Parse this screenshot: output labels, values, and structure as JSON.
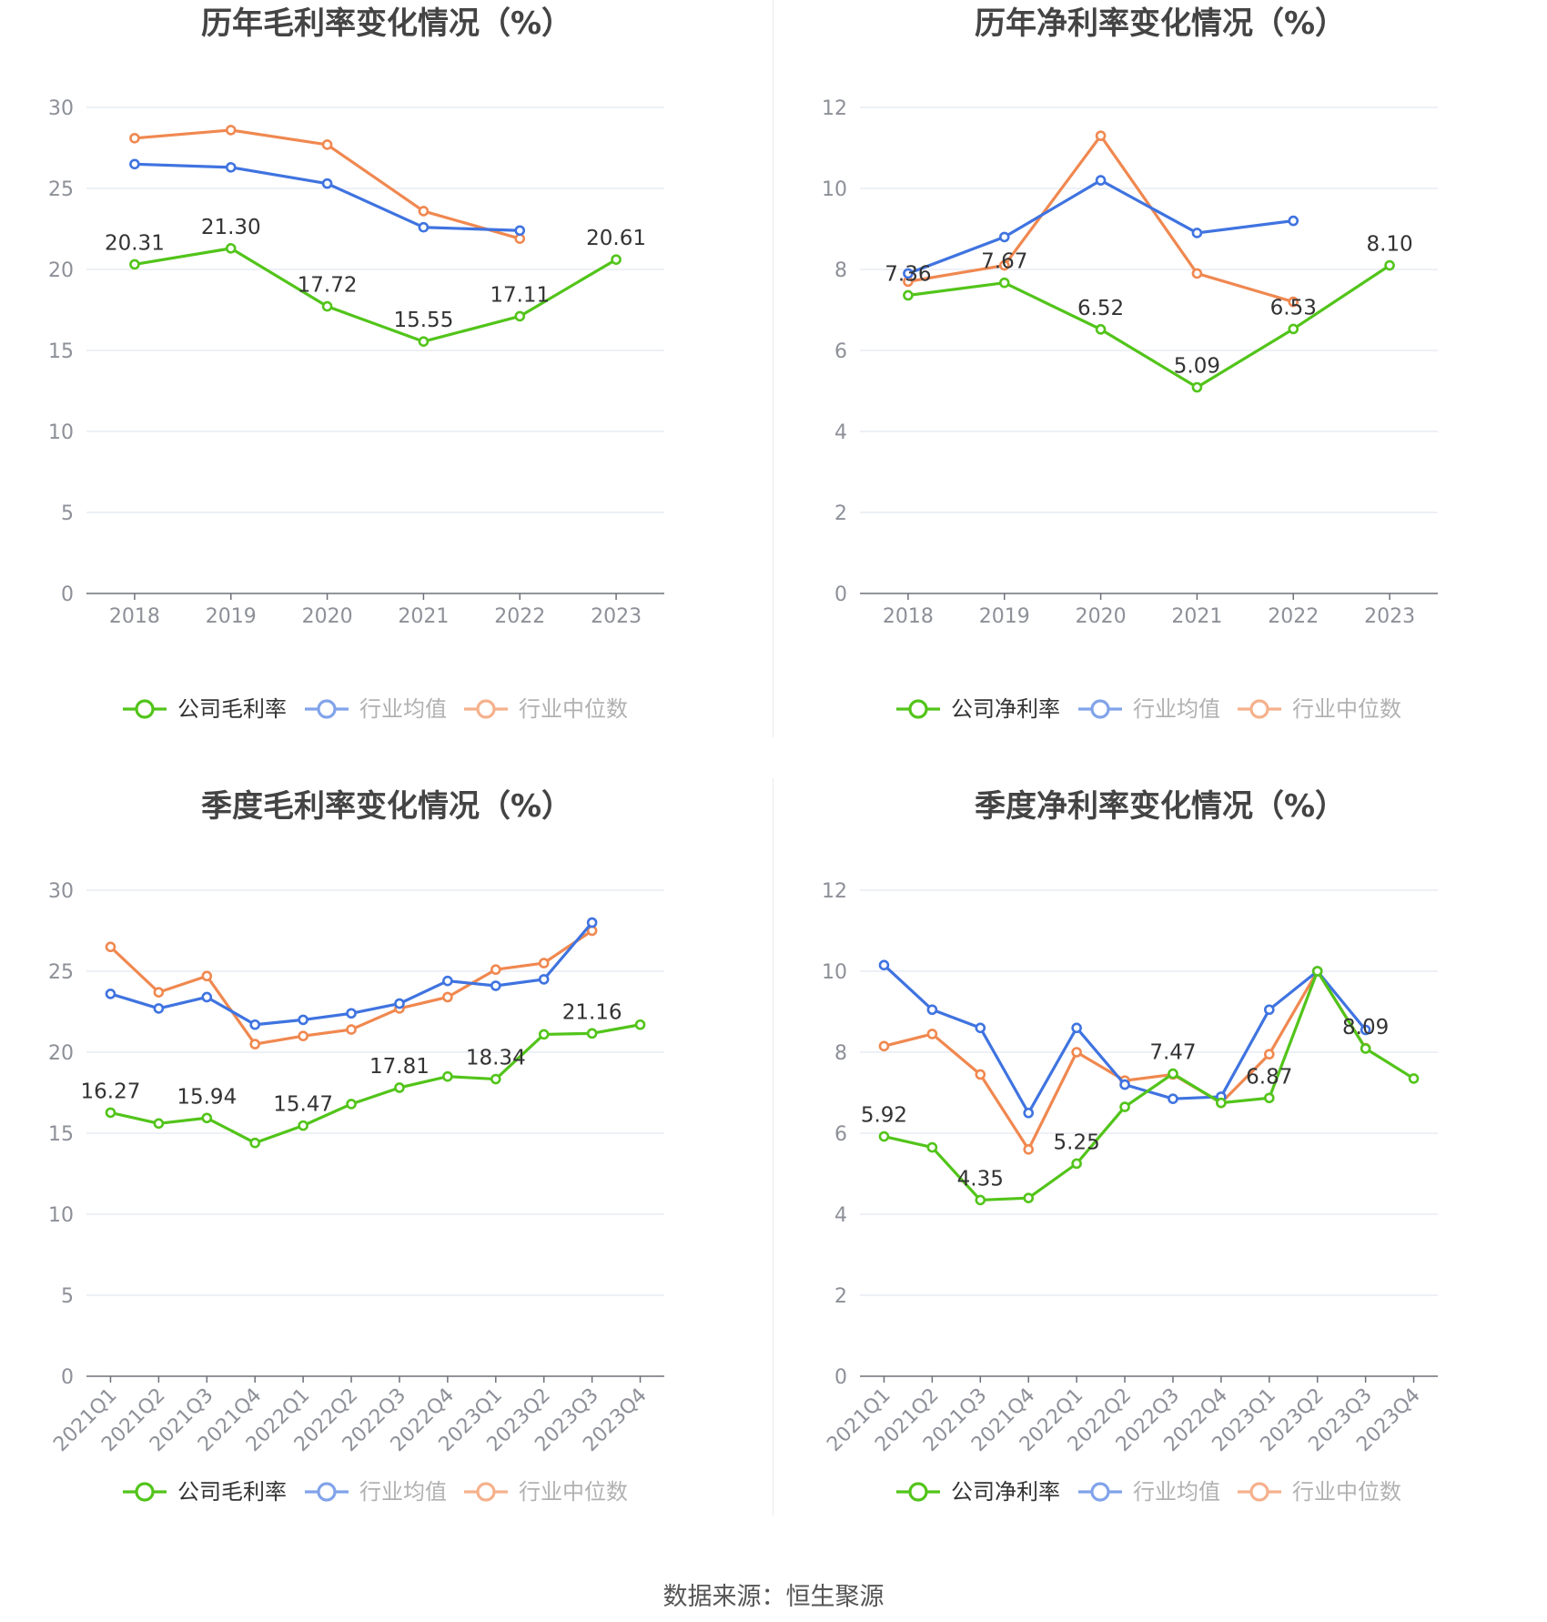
{
  "source": "数据来源：恒生聚源",
  "colors": {
    "company": "#52c41a",
    "avg": "#3f73e0",
    "median": "#f08850",
    "grid": "#e3e6f2",
    "axis": "#6e7079",
    "tick": "#8d9098",
    "label": "#333333"
  },
  "chart_data": [
    {
      "type": "line",
      "title": "历年毛利率变化情况（%）",
      "categories": [
        "2018",
        "2019",
        "2020",
        "2021",
        "2022",
        "2023"
      ],
      "ylim": [
        0,
        30
      ],
      "yticks": [
        "0",
        "5",
        "10",
        "15",
        "20",
        "25",
        "30"
      ],
      "grid": true,
      "legend_position": "bottom",
      "series": [
        {
          "name": "公司毛利率",
          "color": "#52c41a",
          "values": [
            20.31,
            21.3,
            17.72,
            15.55,
            17.11,
            20.61
          ],
          "labels": [
            "20.31",
            "21.30",
            "17.72",
            "15.55",
            "17.11",
            "20.61"
          ]
        },
        {
          "name": "行业均值",
          "color": "#3f73e0",
          "values": [
            26.5,
            26.3,
            25.3,
            22.6,
            22.4,
            null
          ]
        },
        {
          "name": "行业中位数",
          "color": "#f08850",
          "values": [
            28.1,
            28.6,
            27.7,
            23.6,
            21.9,
            null
          ]
        }
      ]
    },
    {
      "type": "line",
      "title": "历年净利率变化情况（%）",
      "categories": [
        "2018",
        "2019",
        "2020",
        "2021",
        "2022",
        "2023"
      ],
      "ylim": [
        0,
        12
      ],
      "yticks": [
        "0",
        "2",
        "4",
        "6",
        "8",
        "10",
        "12"
      ],
      "grid": true,
      "legend_position": "bottom",
      "series": [
        {
          "name": "公司净利率",
          "color": "#52c41a",
          "values": [
            7.36,
            7.67,
            6.52,
            5.09,
            6.53,
            8.1
          ],
          "labels": [
            "7.36",
            "7.67",
            "6.52",
            "5.09",
            "6.53",
            "8.10"
          ]
        },
        {
          "name": "行业均值",
          "color": "#3f73e0",
          "values": [
            7.9,
            8.8,
            10.2,
            8.9,
            9.2,
            null
          ]
        },
        {
          "name": "行业中位数",
          "color": "#f08850",
          "values": [
            7.7,
            8.1,
            11.3,
            7.9,
            7.2,
            null
          ]
        }
      ]
    },
    {
      "type": "line",
      "title": "季度毛利率变化情况（%）",
      "categories": [
        "2021Q1",
        "2021Q2",
        "2021Q3",
        "2021Q4",
        "2022Q1",
        "2022Q2",
        "2022Q3",
        "2022Q4",
        "2023Q1",
        "2023Q2",
        "2023Q3",
        "2023Q4"
      ],
      "ylim": [
        0,
        30
      ],
      "yticks": [
        "0",
        "5",
        "10",
        "15",
        "20",
        "25",
        "30"
      ],
      "grid": true,
      "legend_position": "bottom",
      "series": [
        {
          "name": "公司毛利率",
          "color": "#52c41a",
          "values": [
            16.27,
            15.6,
            15.94,
            14.4,
            15.47,
            16.8,
            17.81,
            18.5,
            18.34,
            21.1,
            21.16,
            21.7
          ],
          "labels": [
            "16.27",
            "",
            "15.94",
            "",
            "15.47",
            "",
            "17.81",
            "",
            "18.34",
            "",
            "21.16",
            ""
          ]
        },
        {
          "name": "行业均值",
          "color": "#3f73e0",
          "values": [
            23.6,
            22.7,
            23.4,
            21.7,
            22.0,
            22.4,
            23.0,
            24.4,
            24.1,
            24.5,
            28.0,
            null
          ]
        },
        {
          "name": "行业中位数",
          "color": "#f08850",
          "values": [
            26.5,
            23.7,
            24.7,
            20.5,
            21.0,
            21.4,
            22.7,
            23.4,
            25.1,
            25.5,
            27.5,
            null
          ]
        }
      ]
    },
    {
      "type": "line",
      "title": "季度净利率变化情况（%）",
      "categories": [
        "2021Q1",
        "2021Q2",
        "2021Q3",
        "2021Q4",
        "2022Q1",
        "2022Q2",
        "2022Q3",
        "2022Q4",
        "2023Q1",
        "2023Q2",
        "2023Q3",
        "2023Q4"
      ],
      "ylim": [
        0,
        12
      ],
      "yticks": [
        "0",
        "2",
        "4",
        "6",
        "8",
        "10",
        "12"
      ],
      "grid": true,
      "legend_position": "bottom",
      "series": [
        {
          "name": "公司净利率",
          "color": "#52c41a",
          "values": [
            5.92,
            5.65,
            4.35,
            4.4,
            5.25,
            6.65,
            7.47,
            6.75,
            6.87,
            10.0,
            8.09,
            7.35
          ],
          "labels": [
            "5.92",
            "",
            "4.35",
            "",
            "5.25",
            "",
            "7.47",
            "",
            "6.87",
            "",
            "8.09",
            ""
          ]
        },
        {
          "name": "行业均值",
          "color": "#3f73e0",
          "values": [
            10.15,
            9.05,
            8.6,
            6.5,
            8.6,
            7.2,
            6.85,
            6.9,
            9.05,
            10.0,
            8.55,
            null
          ]
        },
        {
          "name": "行业中位数",
          "color": "#f08850",
          "values": [
            8.15,
            8.45,
            7.45,
            5.6,
            8.0,
            7.3,
            7.45,
            6.75,
            7.95,
            10.0,
            8.1,
            null
          ]
        }
      ]
    }
  ]
}
